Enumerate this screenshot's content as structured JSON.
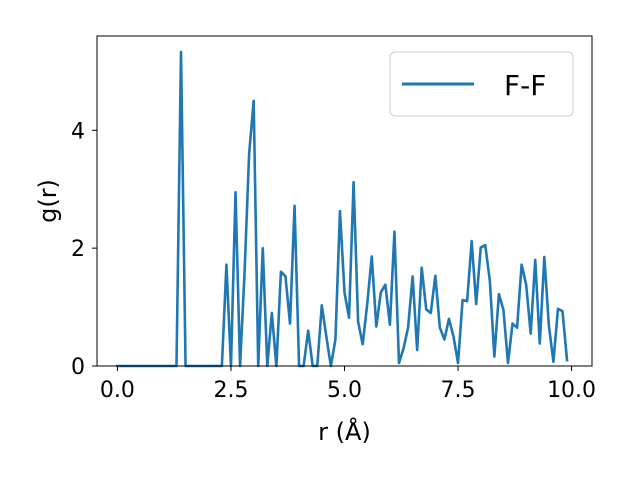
{
  "chart_data": {
    "type": "line",
    "xlabel": "r (Å)",
    "ylabel": "g(r)",
    "xlim": [
      -0.45,
      10.45
    ],
    "ylim": [
      0,
      5.6
    ],
    "xticks": [
      0.0,
      2.5,
      5.0,
      7.5,
      10.0
    ],
    "xtick_labels": [
      "0.0",
      "2.5",
      "5.0",
      "7.5",
      "10.0"
    ],
    "yticks": [
      0,
      2,
      4
    ],
    "ytick_labels": [
      "0",
      "2",
      "4"
    ],
    "grid": false,
    "legend_position": "top-right",
    "series": [
      {
        "name": "F-F",
        "color": "#1f77b4",
        "x": [
          0.0,
          0.1,
          0.2,
          0.3,
          0.4,
          0.5,
          0.6,
          0.7,
          0.8,
          0.9,
          1.0,
          1.1,
          1.2,
          1.3,
          1.4,
          1.5,
          1.6,
          1.7,
          1.8,
          1.9,
          2.0,
          2.1,
          2.2,
          2.3,
          2.4,
          2.5,
          2.6,
          2.7,
          2.8,
          2.9,
          3.0,
          3.1,
          3.2,
          3.3,
          3.4,
          3.5,
          3.6,
          3.7,
          3.8,
          3.9,
          4.0,
          4.1,
          4.2,
          4.3,
          4.4,
          4.5,
          4.6,
          4.7,
          4.8,
          4.9,
          5.0,
          5.1,
          5.2,
          5.3,
          5.4,
          5.5,
          5.6,
          5.7,
          5.8,
          5.9,
          6.0,
          6.1,
          6.2,
          6.3,
          6.4,
          6.5,
          6.6,
          6.7,
          6.8,
          6.9,
          7.0,
          7.1,
          7.2,
          7.3,
          7.4,
          7.5,
          7.6,
          7.7,
          7.8,
          7.9,
          8.0,
          8.1,
          8.2,
          8.3,
          8.4,
          8.5,
          8.6,
          8.7,
          8.8,
          8.9,
          9.0,
          9.1,
          9.2,
          9.3,
          9.4,
          9.5,
          9.6,
          9.7,
          9.8,
          9.9
        ],
        "y": [
          0,
          0,
          0,
          0,
          0,
          0,
          0,
          0,
          0,
          0,
          0,
          0,
          0,
          0,
          5.33,
          0,
          0,
          0,
          0,
          0,
          0,
          0,
          0,
          0,
          1.72,
          0,
          2.95,
          0,
          1.6,
          3.6,
          4.5,
          0,
          2.0,
          0,
          0.9,
          0,
          1.6,
          1.52,
          0.72,
          2.72,
          0,
          0,
          0.6,
          0,
          0,
          1.03,
          0.5,
          0,
          0.45,
          2.63,
          1.25,
          0.82,
          3.12,
          0.75,
          0.37,
          1.05,
          1.86,
          0.67,
          1.25,
          1.38,
          0.7,
          2.28,
          0.05,
          0.3,
          0.65,
          1.52,
          0.27,
          1.67,
          0.96,
          0.9,
          1.53,
          0.65,
          0.45,
          0.8,
          0.5,
          0.05,
          1.12,
          1.1,
          2.12,
          1.05,
          2.01,
          2.05,
          1.45,
          0.16,
          1.22,
          0.95,
          0.05,
          0.72,
          0.65,
          1.72,
          1.38,
          0.55,
          1.8,
          0.38,
          1.85,
          0.69,
          0.07,
          0.97,
          0.93,
          0.1
        ]
      }
    ]
  }
}
